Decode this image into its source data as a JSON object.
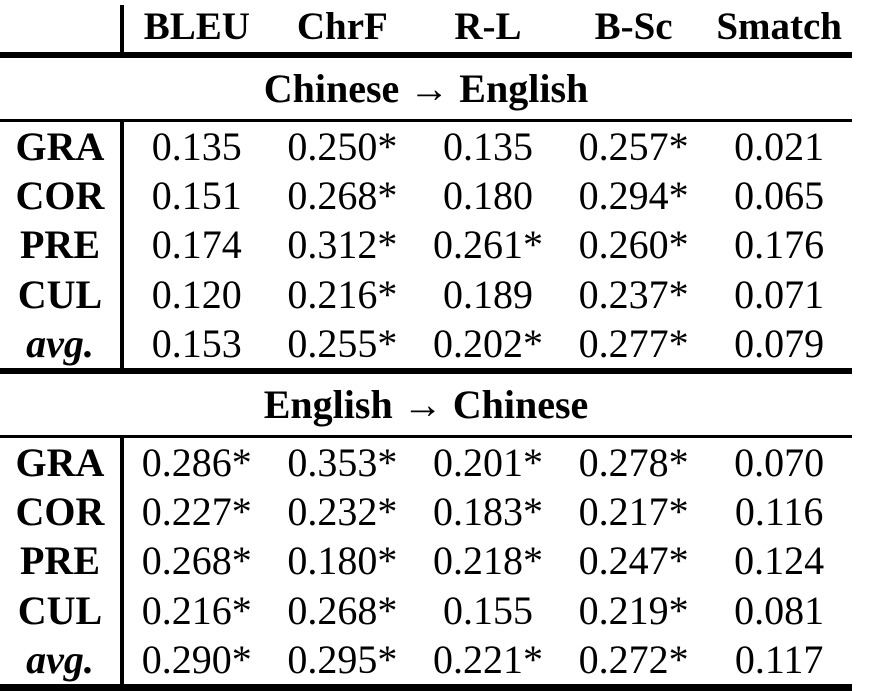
{
  "table": {
    "corner_label": "",
    "columns": [
      "BLEU",
      "ChrF",
      "R-L",
      "B-Sc",
      "Smatch"
    ],
    "sections": [
      {
        "title": "Chinese → English",
        "rows": [
          {
            "label": "GRA",
            "values": [
              "0.135",
              "0.250*",
              "0.135",
              "0.257*",
              "0.021"
            ]
          },
          {
            "label": "COR",
            "values": [
              "0.151",
              "0.268*",
              "0.180",
              "0.294*",
              "0.065"
            ]
          },
          {
            "label": "PRE",
            "values": [
              "0.174",
              "0.312*",
              "0.261*",
              "0.260*",
              "0.176"
            ]
          },
          {
            "label": "CUL",
            "values": [
              "0.120",
              "0.216*",
              "0.189",
              "0.237*",
              "0.071"
            ]
          },
          {
            "label": "avg.",
            "values": [
              "0.153",
              "0.255*",
              "0.202*",
              "0.277*",
              "0.079"
            ]
          }
        ]
      },
      {
        "title": "English → Chinese",
        "rows": [
          {
            "label": "GRA",
            "values": [
              "0.286*",
              "0.353*",
              "0.201*",
              "0.278*",
              "0.070"
            ]
          },
          {
            "label": "COR",
            "values": [
              "0.227*",
              "0.232*",
              "0.183*",
              "0.217*",
              "0.116"
            ]
          },
          {
            "label": "PRE",
            "values": [
              "0.268*",
              "0.180*",
              "0.218*",
              "0.247*",
              "0.124"
            ]
          },
          {
            "label": "CUL",
            "values": [
              "0.216*",
              "0.268*",
              "0.155",
              "0.219*",
              "0.081"
            ]
          },
          {
            "label": "avg.",
            "values": [
              "0.290*",
              "0.295*",
              "0.221*",
              "0.272*",
              "0.117"
            ]
          }
        ]
      }
    ],
    "colors": {
      "text": "#000000",
      "background": "#ffffff",
      "rule": "#000000"
    }
  }
}
